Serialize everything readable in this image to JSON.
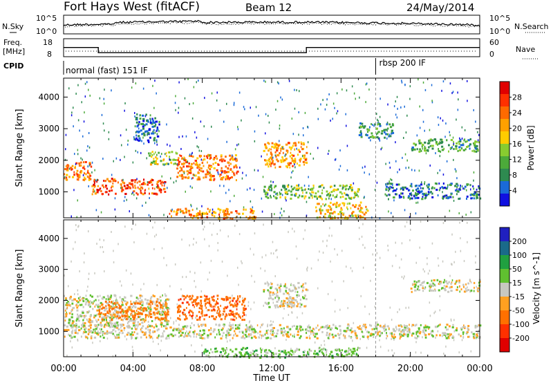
{
  "header": {
    "station": "Fort Hays West (fitACF)",
    "beam": "Beam 12",
    "date": "24/May/2014"
  },
  "noise_panel": {
    "left_label": "N.Sky",
    "right_label": "N.Search",
    "left_ticks": [
      "10^5",
      "10^0"
    ],
    "right_ticks": [
      "10^5",
      "10^0"
    ]
  },
  "freq_panel": {
    "left_label_line1": "Freq.",
    "left_label_line2": "[MHz]",
    "right_label": "Nave",
    "left_ticks": [
      "18",
      "8"
    ],
    "right_ticks": [
      "60",
      "0"
    ],
    "freq_steps": [
      {
        "from_hour": 0.0,
        "to_hour": 2.0,
        "freq_mhz": 15.4
      },
      {
        "from_hour": 2.0,
        "to_hour": 14.0,
        "freq_mhz": 11.2
      },
      {
        "from_hour": 14.0,
        "to_hour": 24.0,
        "freq_mhz": 15.4
      }
    ]
  },
  "cpid_panel": {
    "label": "CPID",
    "modes": [
      {
        "from_hour": 0.0,
        "to_hour": 18.0,
        "name": "normal (fast) 151 IF"
      },
      {
        "from_hour": 18.0,
        "to_hour": 24.0,
        "name": "rbsp 200 IF"
      }
    ]
  },
  "colors": {
    "power_scale": [
      "#1010e0",
      "#1a6ad8",
      "#2e8a50",
      "#4caa3a",
      "#88cc30",
      "#ffcc00",
      "#ffa000",
      "#ff6a00",
      "#ff3000",
      "#e00000"
    ],
    "velocity_scale": [
      "#e00000",
      "#ff3000",
      "#ff7000",
      "#ffa020",
      "#c8c8c0",
      "#60c030",
      "#20a040",
      "#1a6a8a",
      "#2020c0"
    ]
  },
  "chart_data": [
    {
      "type": "heatmap",
      "title": "",
      "xlabel": "Time UT",
      "ylabel": "Slant Range [km]",
      "x_ticks": [
        "00:00",
        "04:00",
        "08:00",
        "12:00",
        "16:00",
        "20:00",
        "00:00"
      ],
      "y_ticks": [
        "1000",
        "2000",
        "3000",
        "4000"
      ],
      "xlim_hours": [
        0,
        24
      ],
      "ylim_km": [
        180,
        4600
      ],
      "colorbar": {
        "label": "Power [dB]",
        "ticks": [
          "4",
          "8",
          "12",
          "16",
          "20",
          "24",
          "28"
        ],
        "range": [
          0,
          30
        ]
      },
      "echo_regions": [
        {
          "x_hours": [
            0.0,
            1.6
          ],
          "y_km": [
            1400,
            2000
          ],
          "value": 22
        },
        {
          "x_hours": [
            1.6,
            5.8
          ],
          "y_km": [
            950,
            1450
          ],
          "value": 24
        },
        {
          "x_hours": [
            4.8,
            6.5
          ],
          "y_km": [
            1900,
            2300
          ],
          "value": 14
        },
        {
          "x_hours": [
            6.5,
            10.0
          ],
          "y_km": [
            1400,
            2200
          ],
          "value": 22
        },
        {
          "x_hours": [
            6.0,
            11.0
          ],
          "y_km": [
            180,
            500
          ],
          "value": 20
        },
        {
          "x_hours": [
            11.5,
            14.0
          ],
          "y_km": [
            1800,
            2600
          ],
          "value": 20
        },
        {
          "x_hours": [
            11.5,
            17.0
          ],
          "y_km": [
            800,
            1250
          ],
          "value": 12
        },
        {
          "x_hours": [
            14.5,
            17.5
          ],
          "y_km": [
            180,
            700
          ],
          "value": 18
        },
        {
          "x_hours": [
            17.0,
            19.0
          ],
          "y_km": [
            2700,
            3200
          ],
          "value": 8
        },
        {
          "x_hours": [
            18.5,
            24.0
          ],
          "y_km": [
            800,
            1300
          ],
          "value": 6
        },
        {
          "x_hours": [
            20.0,
            24.0
          ],
          "y_km": [
            2300,
            2700
          ],
          "value": 10
        },
        {
          "x_hours": [
            4.0,
            5.5
          ],
          "y_km": [
            2600,
            3500
          ],
          "value": 6
        }
      ]
    },
    {
      "type": "heatmap",
      "title": "",
      "xlabel": "Time UT",
      "ylabel": "Slant Range [km]",
      "x_ticks": [
        "00:00",
        "04:00",
        "08:00",
        "12:00",
        "16:00",
        "20:00",
        "00:00"
      ],
      "y_ticks": [
        "1000",
        "2000",
        "3000",
        "4000"
      ],
      "xlim_hours": [
        0,
        24
      ],
      "ylim_km": [
        180,
        4600
      ],
      "colorbar": {
        "label": "Velocity [m s^-1]",
        "ticks": [
          "200",
          "100",
          "50",
          "15",
          "-15",
          "-50",
          "-100",
          "-200"
        ],
        "range": [
          -250,
          250
        ]
      },
      "echo_regions": [
        {
          "x_hours": [
            0.0,
            6.0
          ],
          "y_km": [
            1200,
            2200
          ],
          "value": 0
        },
        {
          "x_hours": [
            2.0,
            6.0
          ],
          "y_km": [
            1400,
            2000
          ],
          "value": -60
        },
        {
          "x_hours": [
            6.5,
            10.5
          ],
          "y_km": [
            1400,
            2200
          ],
          "value": -80
        },
        {
          "x_hours": [
            11.5,
            14.0
          ],
          "y_km": [
            1800,
            2600
          ],
          "value": 0
        },
        {
          "x_hours": [
            0.0,
            24.0
          ],
          "y_km": [
            800,
            1250
          ],
          "value": 0
        },
        {
          "x_hours": [
            8.0,
            17.0
          ],
          "y_km": [
            180,
            500
          ],
          "value": 30
        },
        {
          "x_hours": [
            20.0,
            24.0
          ],
          "y_km": [
            2300,
            2700
          ],
          "value": 0
        }
      ]
    }
  ]
}
